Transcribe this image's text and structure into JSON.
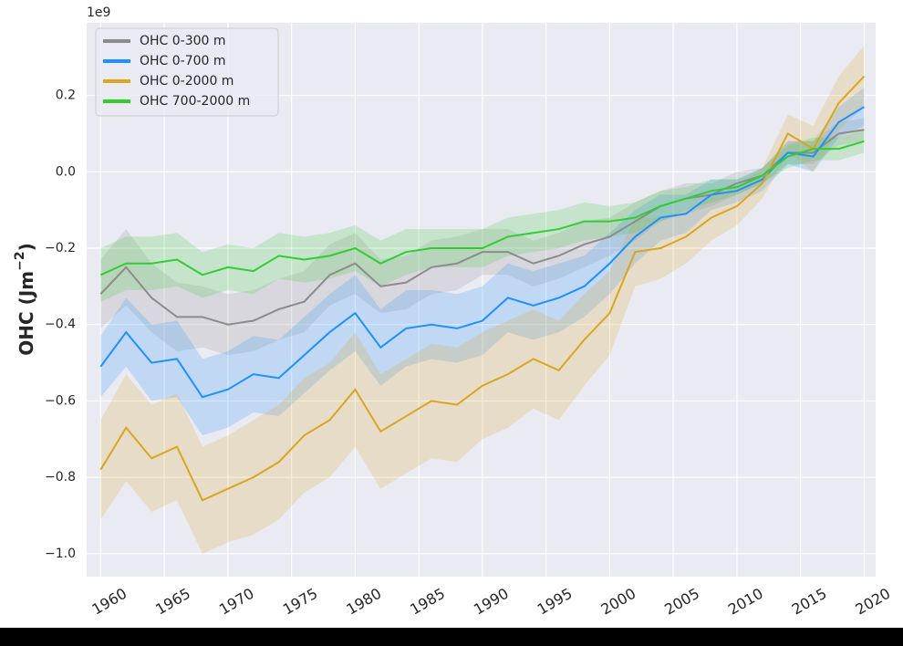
{
  "chart_data": {
    "type": "line",
    "offset_text": "1e9",
    "ylabel": [
      "OHC (Jm",
      "−2",
      ")"
    ],
    "x": [
      1960,
      1962,
      1964,
      1966,
      1968,
      1970,
      1972,
      1974,
      1976,
      1978,
      1980,
      1982,
      1984,
      1986,
      1988,
      1990,
      1992,
      1994,
      1996,
      1998,
      2000,
      2002,
      2004,
      2006,
      2008,
      2010,
      2012,
      2014,
      2016,
      2018,
      2020
    ],
    "xlim": [
      1958.9,
      2020.9
    ],
    "xticks": [
      1960,
      1965,
      1970,
      1975,
      1980,
      1985,
      1990,
      1995,
      2000,
      2005,
      2010,
      2015,
      2020
    ],
    "ylim": [
      -1.06,
      0.39
    ],
    "yticks": [
      {
        "value": -1.0,
        "label": "−1.0"
      },
      {
        "value": -0.8,
        "label": "−0.8"
      },
      {
        "value": -0.6,
        "label": "−0.6"
      },
      {
        "value": -0.4,
        "label": "−0.4"
      },
      {
        "value": -0.2,
        "label": "−0.2"
      },
      {
        "value": 0.0,
        "label": "0.0"
      },
      {
        "value": 0.2,
        "label": "0.2"
      }
    ],
    "grid": true,
    "legend": "upper left",
    "series": [
      {
        "name": "OHC 0-300 m",
        "color": "#8c8c8c",
        "values": [
          -0.32,
          -0.25,
          -0.33,
          -0.38,
          -0.38,
          -0.4,
          -0.39,
          -0.36,
          -0.34,
          -0.27,
          -0.24,
          -0.3,
          -0.29,
          -0.25,
          -0.24,
          -0.21,
          -0.21,
          -0.24,
          -0.22,
          -0.19,
          -0.17,
          -0.13,
          -0.09,
          -0.07,
          -0.06,
          -0.03,
          -0.01,
          0.05,
          0.05,
          0.1,
          0.11
        ],
        "error": [
          0.09,
          0.1,
          0.09,
          0.09,
          0.08,
          0.08,
          0.08,
          0.08,
          0.08,
          0.08,
          0.08,
          0.07,
          0.07,
          0.07,
          0.07,
          0.06,
          0.06,
          0.06,
          0.06,
          0.06,
          0.05,
          0.05,
          0.04,
          0.04,
          0.03,
          0.03,
          0.02,
          0.03,
          0.03,
          0.03,
          0.03
        ]
      },
      {
        "name": "OHC 0-700 m",
        "color": "#1e90ff",
        "values": [
          -0.51,
          -0.42,
          -0.5,
          -0.49,
          -0.59,
          -0.57,
          -0.53,
          -0.54,
          -0.48,
          -0.42,
          -0.37,
          -0.46,
          -0.41,
          -0.4,
          -0.41,
          -0.39,
          -0.33,
          -0.35,
          -0.33,
          -0.3,
          -0.24,
          -0.17,
          -0.12,
          -0.11,
          -0.06,
          -0.05,
          -0.02,
          0.05,
          0.04,
          0.13,
          0.17
        ],
        "error": [
          0.08,
          0.09,
          0.1,
          0.1,
          0.1,
          0.1,
          0.1,
          0.1,
          0.1,
          0.1,
          0.1,
          0.1,
          0.1,
          0.09,
          0.09,
          0.09,
          0.09,
          0.09,
          0.09,
          0.08,
          0.08,
          0.07,
          0.06,
          0.05,
          0.04,
          0.03,
          0.03,
          0.03,
          0.04,
          0.04,
          0.05
        ]
      },
      {
        "name": "OHC 0-2000 m",
        "color": "#daa520",
        "values": [
          -0.78,
          -0.67,
          -0.75,
          -0.72,
          -0.86,
          -0.83,
          -0.8,
          -0.76,
          -0.69,
          -0.65,
          -0.57,
          -0.68,
          -0.64,
          -0.6,
          -0.61,
          -0.56,
          -0.53,
          -0.49,
          -0.52,
          -0.44,
          -0.37,
          -0.21,
          -0.2,
          -0.17,
          -0.12,
          -0.09,
          -0.03,
          0.1,
          0.06,
          0.18,
          0.25
        ],
        "error": [
          0.13,
          0.14,
          0.14,
          0.14,
          0.14,
          0.14,
          0.15,
          0.15,
          0.15,
          0.15,
          0.15,
          0.15,
          0.15,
          0.15,
          0.15,
          0.14,
          0.14,
          0.13,
          0.13,
          0.12,
          0.11,
          0.09,
          0.08,
          0.07,
          0.06,
          0.05,
          0.04,
          0.05,
          0.06,
          0.07,
          0.08
        ]
      },
      {
        "name": "OHC 700-2000 m",
        "color": "#32cd32",
        "values": [
          -0.27,
          -0.24,
          -0.24,
          -0.23,
          -0.27,
          -0.25,
          -0.26,
          -0.22,
          -0.23,
          -0.22,
          -0.2,
          -0.24,
          -0.21,
          -0.2,
          -0.2,
          -0.2,
          -0.17,
          -0.16,
          -0.15,
          -0.13,
          -0.13,
          -0.12,
          -0.09,
          -0.07,
          -0.05,
          -0.04,
          -0.01,
          0.04,
          0.06,
          0.06,
          0.08
        ],
        "error": [
          0.07,
          0.07,
          0.07,
          0.07,
          0.06,
          0.06,
          0.06,
          0.06,
          0.06,
          0.06,
          0.06,
          0.06,
          0.06,
          0.05,
          0.05,
          0.05,
          0.05,
          0.05,
          0.05,
          0.05,
          0.04,
          0.04,
          0.04,
          0.03,
          0.03,
          0.02,
          0.02,
          0.03,
          0.03,
          0.03,
          0.03
        ]
      }
    ]
  }
}
